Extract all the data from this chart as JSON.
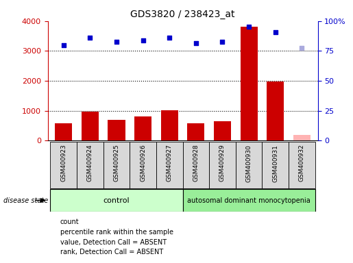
{
  "title": "GDS3820 / 238423_at",
  "samples": [
    "GSM400923",
    "GSM400924",
    "GSM400925",
    "GSM400926",
    "GSM400927",
    "GSM400928",
    "GSM400929",
    "GSM400930",
    "GSM400931",
    "GSM400932"
  ],
  "bar_values": [
    580,
    980,
    700,
    820,
    1020,
    590,
    650,
    3800,
    1980,
    200
  ],
  "bar_colors": [
    "#cc0000",
    "#cc0000",
    "#cc0000",
    "#cc0000",
    "#cc0000",
    "#cc0000",
    "#cc0000",
    "#cc0000",
    "#cc0000",
    "#ffb3b3"
  ],
  "scatter_pct": [
    80,
    86,
    82.5,
    84,
    86,
    81.5,
    82.5,
    95,
    90.5,
    77.5
  ],
  "scatter_colors": [
    "#0000cc",
    "#0000cc",
    "#0000cc",
    "#0000cc",
    "#0000cc",
    "#0000cc",
    "#0000cc",
    "#0000cc",
    "#0000cc",
    "#aaaadd"
  ],
  "ylim_left": [
    0,
    4000
  ],
  "ylim_right": [
    0,
    100
  ],
  "yticks_left": [
    0,
    1000,
    2000,
    3000,
    4000
  ],
  "yticks_right": [
    0,
    25,
    50,
    75,
    100
  ],
  "yticklabels_right": [
    "0",
    "25",
    "50",
    "75",
    "100%"
  ],
  "yticklabels_left": [
    "0",
    "1000",
    "2000",
    "3000",
    "4000"
  ],
  "group_control_label": "control",
  "group_disease_label": "autosomal dominant monocytopenia",
  "disease_state_label": "disease state",
  "n_control": 5,
  "n_disease": 5,
  "legend_items": [
    {
      "label": "count",
      "color": "#cc0000"
    },
    {
      "label": "percentile rank within the sample",
      "color": "#0000cc"
    },
    {
      "label": "value, Detection Call = ABSENT",
      "color": "#ffb3b3"
    },
    {
      "label": "rank, Detection Call = ABSENT",
      "color": "#bbbbdd"
    }
  ],
  "left_tick_color": "#cc0000",
  "right_tick_color": "#0000cc",
  "group_box_color_control": "#ccffcc",
  "group_box_color_disease": "#99ee99",
  "sample_box_color": "#d8d8d8",
  "dotted_lines": [
    1000,
    2000,
    3000
  ]
}
